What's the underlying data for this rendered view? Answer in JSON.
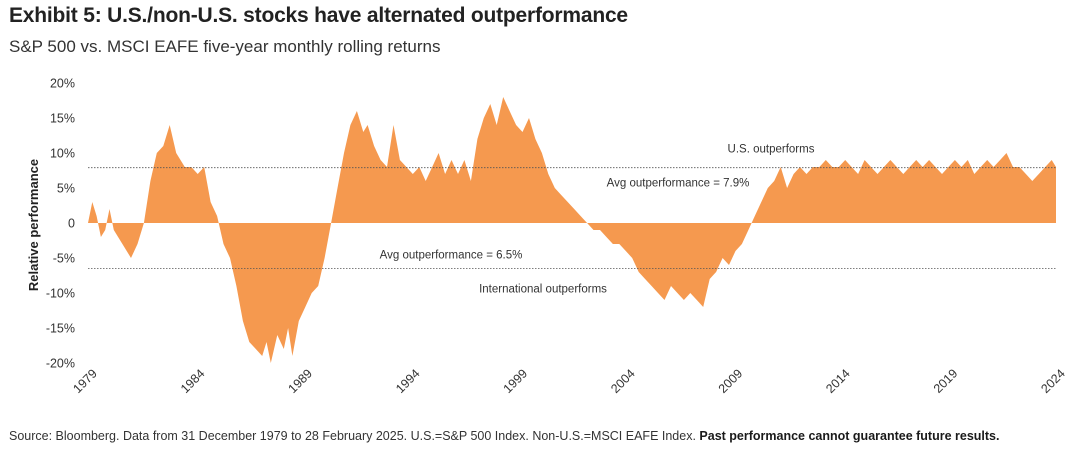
{
  "title": "Exhibit 5: U.S./non-U.S. stocks have alternated outperformance",
  "subtitle": "S&P 500 vs. MSCI EAFE five-year monthly rolling returns",
  "source": {
    "text": "Source: Bloomberg. Data from 31 December 1979 to 28 February 2025. U.S.=S&P 500 Index. Non-U.S.=MSCI EAFE Index. ",
    "bold": "Past performance cannot guarantee future results."
  },
  "colors": {
    "area": "#f5994f",
    "refline": "#555555"
  },
  "chart_data": {
    "type": "area",
    "ylabel": "Relative performance",
    "ylim": [
      -20,
      20
    ],
    "yticks": [
      {
        "value": 20,
        "label": "20%"
      },
      {
        "value": 15,
        "label": "15%"
      },
      {
        "value": 10,
        "label": "10%"
      },
      {
        "value": 5,
        "label": "5%"
      },
      {
        "value": 0,
        "label": "0"
      },
      {
        "value": -5,
        "label": "-5%"
      },
      {
        "value": -10,
        "label": "-10%"
      },
      {
        "value": -15,
        "label": "-15%"
      },
      {
        "value": -20,
        "label": "-20%"
      }
    ],
    "xlim": [
      1979,
      2024
    ],
    "xticks": [
      "1979",
      "1984",
      "1989",
      "1994",
      "1999",
      "2004",
      "2009",
      "2014",
      "2019",
      "2024"
    ],
    "reference_lines": [
      {
        "value": 7.9,
        "label": "U.S. outperforms",
        "sublabel": "Avg outperformance = 7.9%"
      },
      {
        "value": -6.5,
        "label": "International outperforms",
        "sublabel": "Avg outperformance = 6.5%"
      }
    ],
    "series": [
      {
        "x": [
          1979.0,
          1979.2,
          1979.4,
          1979.6,
          1979.8,
          1980.0,
          1980.2,
          1980.4,
          1980.6,
          1980.8,
          1981.0,
          1981.3,
          1981.6,
          1981.9,
          1982.2,
          1982.5,
          1982.8,
          1983.1,
          1983.3,
          1983.5,
          1983.8,
          1984.1,
          1984.4,
          1984.7,
          1985.0,
          1985.3,
          1985.6,
          1985.9,
          1986.2,
          1986.5,
          1986.8,
          1987.1,
          1987.3,
          1987.5,
          1987.8,
          1988.1,
          1988.3,
          1988.5,
          1988.8,
          1989.1,
          1989.4,
          1989.7,
          1990.0,
          1990.3,
          1990.6,
          1990.9,
          1991.2,
          1991.5,
          1991.8,
          1992.0,
          1992.3,
          1992.6,
          1992.9,
          1993.2,
          1993.5,
          1993.8,
          1994.1,
          1994.4,
          1994.7,
          1995.0,
          1995.3,
          1995.6,
          1995.9,
          1996.2,
          1996.5,
          1996.8,
          1997.1,
          1997.4,
          1997.7,
          1998.0,
          1998.3,
          1998.6,
          1998.9,
          1999.2,
          1999.5,
          1999.8,
          2000.1,
          2000.4,
          2000.7,
          2001.0,
          2001.3,
          2001.6,
          2001.9,
          2002.2,
          2002.5,
          2002.8,
          2003.1,
          2003.4,
          2003.7,
          2004.0,
          2004.3,
          2004.6,
          2004.9,
          2005.2,
          2005.5,
          2005.8,
          2006.1,
          2006.4,
          2006.7,
          2007.0,
          2007.3,
          2007.6,
          2007.9,
          2008.2,
          2008.5,
          2008.8,
          2009.1,
          2009.4,
          2009.7,
          2010.0,
          2010.3,
          2010.6,
          2010.9,
          2011.2,
          2011.5,
          2011.8,
          2012.1,
          2012.4,
          2012.7,
          2013.0,
          2013.3,
          2013.6,
          2013.9,
          2014.2,
          2014.5,
          2014.8,
          2015.1,
          2015.4,
          2015.7,
          2016.0,
          2016.3,
          2016.6,
          2016.9,
          2017.2,
          2017.5,
          2017.8,
          2018.1,
          2018.4,
          2018.7,
          2019.0,
          2019.3,
          2019.6,
          2019.9,
          2020.2,
          2020.5,
          2020.8,
          2021.1,
          2021.4,
          2021.7,
          2022.0,
          2022.3,
          2022.6,
          2022.9,
          2023.2,
          2023.5,
          2023.8,
          2024.0
        ],
        "values": [
          0,
          3,
          1,
          -2,
          -1,
          2,
          -1,
          -2,
          -3,
          -4,
          -5,
          -3,
          0,
          6,
          10,
          11,
          14,
          10,
          9,
          8,
          8,
          7,
          8,
          3,
          1,
          -3,
          -5,
          -9,
          -14,
          -17,
          -18,
          -19,
          -17,
          -20,
          -16,
          -18,
          -15,
          -19,
          -14,
          -12,
          -10,
          -9,
          -5,
          0,
          5,
          10,
          14,
          16,
          13,
          14,
          11,
          9,
          8,
          14,
          9,
          8,
          7,
          8,
          6,
          8,
          10,
          7,
          9,
          7,
          9,
          6,
          12,
          15,
          17,
          14,
          18,
          16,
          14,
          13,
          15,
          12,
          10,
          7,
          5,
          4,
          3,
          2,
          1,
          0,
          -1,
          -1,
          -2,
          -3,
          -3,
          -4,
          -5,
          -7,
          -8,
          -9,
          -10,
          -11,
          -9,
          -10,
          -11,
          -10,
          -11,
          -12,
          -8,
          -7,
          -5,
          -6,
          -4,
          -3,
          -1,
          1,
          3,
          5,
          6,
          8,
          5,
          7,
          8,
          7,
          8,
          8,
          9,
          8,
          8,
          9,
          8,
          7,
          9,
          8,
          7,
          8,
          9,
          8,
          7,
          8,
          9,
          8,
          9,
          8,
          7,
          8,
          9,
          8,
          9,
          7,
          8,
          9,
          8,
          9,
          10,
          8,
          8,
          7,
          6,
          7,
          8,
          9,
          8
        ]
      }
    ]
  }
}
